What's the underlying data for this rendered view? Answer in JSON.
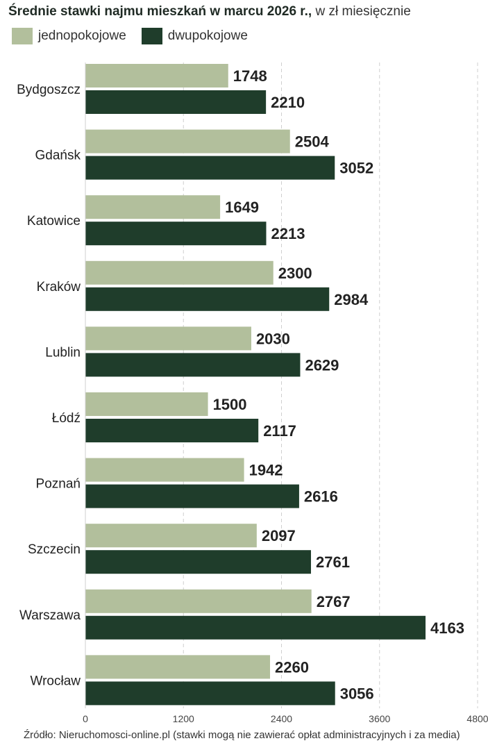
{
  "header": {
    "title": "Średnie stawki najmu mieszkań w marcu 2026 r.,",
    "subtitle": "w zł miesięcznie"
  },
  "legend": {
    "items": [
      {
        "label": "jednopokojowe",
        "color": "#b2bf9c"
      },
      {
        "label": "dwupokojowe",
        "color": "#1f3d2b"
      }
    ]
  },
  "source": "Źródło: Nieruchomosci-online.pl (stawki mogą nie zawierać opłat administracyjnych i za media)",
  "chart_data": {
    "type": "bar",
    "orientation": "horizontal",
    "categories": [
      "Bydgoszcz",
      "Gdańsk",
      "Katowice",
      "Kraków",
      "Lublin",
      "Łódź",
      "Poznań",
      "Szczecin",
      "Warszawa",
      "Wrocław"
    ],
    "series": [
      {
        "name": "jednopokojowe",
        "color": "#b2bf9c",
        "values": [
          1748,
          2504,
          1649,
          2300,
          2030,
          1500,
          1942,
          2097,
          2767,
          2260
        ]
      },
      {
        "name": "dwupokojowe",
        "color": "#1f3d2b",
        "values": [
          2210,
          3052,
          2213,
          2984,
          2629,
          2117,
          2616,
          2761,
          4163,
          3056
        ]
      }
    ],
    "xlim": [
      0,
      4800
    ],
    "xticks": [
      "0",
      "1200",
      "2400",
      "3600",
      "4800"
    ],
    "grid": true,
    "legend_position": "top-left"
  }
}
